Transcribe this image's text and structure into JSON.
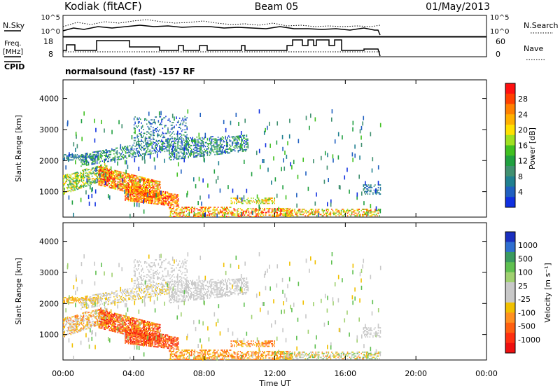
{
  "header": {
    "station": "Kodiak (fitACF)",
    "beam": "Beam 05",
    "date": "01/May/2013"
  },
  "panels": {
    "noise": {
      "left_label": "N.Sky",
      "right_label": "N.Search",
      "left_ticks": [
        "10^5",
        "10^0"
      ],
      "right_ticks": [
        "10^5",
        "10^0"
      ]
    },
    "freq": {
      "left_label_1": "Freq.",
      "left_label_2": "[MHz]",
      "left_ticks": [
        "18",
        "8"
      ],
      "right_label": "Nave",
      "right_ticks": [
        "60",
        "0"
      ]
    },
    "cpid": {
      "label": "CPID",
      "program": "normalsound (fast) -157 RF"
    }
  },
  "colorbars": {
    "power": {
      "label": "Power [dB]",
      "ticks": [
        "28",
        "24",
        "20",
        "16",
        "12",
        "8",
        "4"
      ],
      "colors": [
        "#ff1010",
        "#ff4000",
        "#ff8000",
        "#ffb000",
        "#ffe000",
        "#a0e020",
        "#40c020",
        "#20a040",
        "#409070",
        "#208090",
        "#2060c0",
        "#1030e0"
      ]
    },
    "velocity": {
      "label": "Velocity [m s⁻¹]",
      "ticks": [
        "1000",
        "500",
        "100",
        "25",
        "-25",
        "-100",
        "-500",
        "-1000"
      ],
      "colors": [
        "#1a2fbf",
        "#2f6fd0",
        "#3a9a60",
        "#5fc050",
        "#a0d070",
        "#c8c8c8",
        "#c8c8c8",
        "#f0c000",
        "#ff9020",
        "#ff6010",
        "#ff3010",
        "#ee1010"
      ]
    }
  },
  "chart_data": [
    {
      "type": "heatmap",
      "title": "Power",
      "ylabel": "Slant Range [km]",
      "xlabel": "Time UT",
      "x_ticks": [
        "00:00",
        "04:00",
        "08:00",
        "12:00",
        "16:00",
        "20:00",
        "00:00"
      ],
      "y_ticks": [
        "1000",
        "2000",
        "3000",
        "4000"
      ],
      "ylim": [
        180,
        4600
      ],
      "xlim_hours": [
        0,
        24
      ],
      "data_extent_hours": [
        0,
        18
      ]
    },
    {
      "type": "heatmap",
      "title": "Velocity",
      "ylabel": "Slant Range [km]",
      "xlabel": "Time UT",
      "x_ticks": [
        "00:00",
        "04:00",
        "08:00",
        "12:00",
        "16:00",
        "20:00",
        "00:00"
      ],
      "y_ticks": [
        "1000",
        "2000",
        "3000",
        "4000"
      ],
      "ylim": [
        180,
        4600
      ],
      "xlim_hours": [
        0,
        24
      ],
      "data_extent_hours": [
        0,
        18
      ]
    }
  ],
  "axis_title": "Time UT"
}
